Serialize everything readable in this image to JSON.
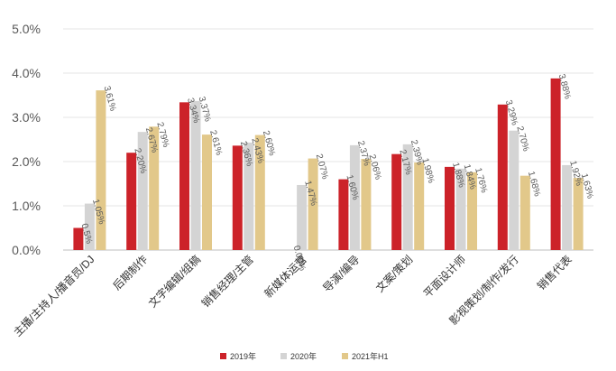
{
  "chart_data": {
    "type": "bar",
    "title": "",
    "xlabel": "",
    "ylabel": "",
    "ylim": [
      0,
      5
    ],
    "y_ticks": [
      "0.0%",
      "1.0%",
      "2.0%",
      "3.0%",
      "4.0%",
      "5.0%"
    ],
    "grid": true,
    "legend_position": "bottom",
    "categories": [
      "主播/主持人/播音员/DJ",
      "后期制作",
      "文字编辑/组稿",
      "销售经理/主管",
      "新媒体运营",
      "导演/编导",
      "文案/策划",
      "平面设计师",
      "影视策划/制作/发行",
      "销售代表"
    ],
    "series": [
      {
        "name": "2019年",
        "color": "#cc2229",
        "values": [
          0.5,
          2.2,
          3.34,
          2.36,
          0.0,
          1.6,
          2.17,
          1.88,
          3.29,
          3.88
        ],
        "labels": [
          "0.5%",
          "2.20%",
          "3.34%",
          "2.36%",
          "0.00%",
          "1.60%",
          "2.17%",
          "1.88%",
          "3.29%",
          "3.88%"
        ]
      },
      {
        "name": "2020年",
        "color": "#d4d4d4",
        "values": [
          1.05,
          2.67,
          3.37,
          2.43,
          1.47,
          2.37,
          2.39,
          1.84,
          2.7,
          1.92
        ],
        "labels": [
          "1.05%",
          "2.67%",
          "3.37%",
          "2.43%",
          "1.47%",
          "2.37%",
          "2.39%",
          "1.84%",
          "2.70%",
          "1.92%"
        ]
      },
      {
        "name": "2021年H1",
        "color": "#e2c88a",
        "values": [
          3.61,
          2.79,
          2.61,
          2.6,
          2.07,
          2.06,
          1.98,
          1.76,
          1.68,
          1.63
        ],
        "labels": [
          "3.61%",
          "2.79%",
          "2.61%",
          "2.60%",
          "2.07%",
          "2.06%",
          "1.98%",
          "1.76%",
          "1.68%",
          "1.63%"
        ]
      }
    ]
  }
}
